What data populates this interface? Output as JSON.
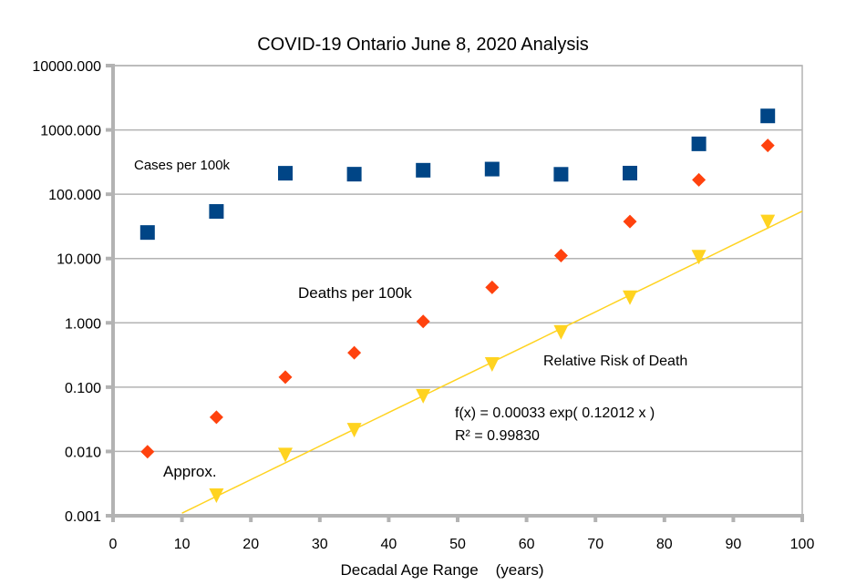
{
  "chart_data": {
    "type": "scatter",
    "title": "COVID-19 Ontario June 8, 2020 Analysis",
    "xlabel": "Decadal Age Range    (years)",
    "ylabel": "",
    "xlim": [
      0,
      100
    ],
    "ylim": [
      0.001,
      10000
    ],
    "yscale": "log",
    "grid": "horizontal",
    "legend": "none",
    "x_ticks": [
      0,
      10,
      20,
      30,
      40,
      50,
      60,
      70,
      80,
      90,
      100
    ],
    "x_tick_labels": [
      "0",
      "10",
      "20",
      "30",
      "40",
      "50",
      "60",
      "70",
      "80",
      "90",
      "100"
    ],
    "y_ticks": [
      0.001,
      0.01,
      0.1,
      1,
      10,
      100,
      1000,
      10000
    ],
    "y_tick_labels": [
      "0.001",
      "0.010",
      "0.100",
      "1.000",
      "10.000",
      "100.000",
      "1000.000",
      "10000.000"
    ],
    "x": [
      5,
      15,
      25,
      35,
      45,
      55,
      65,
      75,
      85,
      95
    ],
    "series": [
      {
        "name": "Cases per 100k",
        "marker": "square",
        "color": "#004586",
        "values": [
          25.4,
          54,
          212,
          205,
          236,
          246,
          204,
          213,
          607,
          1650
        ]
      },
      {
        "name": "Deaths per 100k",
        "marker": "diamond",
        "color": "#ff420e",
        "values": [
          0.0099,
          0.034,
          0.143,
          0.342,
          1.05,
          3.56,
          11.1,
          37.6,
          167,
          574
        ]
      },
      {
        "name": "Relative Risk of Death",
        "marker": "triangle-down",
        "color": "#ffd320",
        "values": [
          null,
          0.00205,
          0.0088,
          0.0214,
          0.072,
          0.225,
          0.71,
          2.46,
          10.5,
          37
        ]
      }
    ],
    "trendline": {
      "series": "Relative Risk of Death",
      "type": "exponential",
      "a": 0.00033,
      "b": 0.12012,
      "x_range": [
        10,
        100
      ],
      "color": "#ffd320"
    },
    "annotations": [
      {
        "id": "cases",
        "text": "Cases per 100k"
      },
      {
        "id": "deaths",
        "text": "Deaths per 100k"
      },
      {
        "id": "risk",
        "text": "Relative Risk of Death"
      },
      {
        "id": "eq1",
        "text": "f(x) = 0.00033 exp( 0.12012 x )"
      },
      {
        "id": "eq2",
        "text": "R² = 0.99830"
      },
      {
        "id": "approx",
        "text": "Approx."
      }
    ]
  }
}
